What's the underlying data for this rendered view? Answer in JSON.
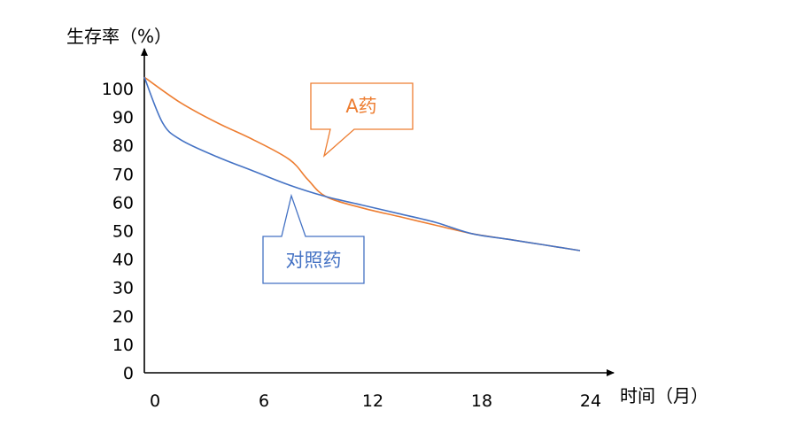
{
  "chart_data": {
    "type": "line",
    "xlabel": "时间（月）",
    "ylabel": "生存率（%）",
    "xlim": [
      0,
      24
    ],
    "ylim": [
      0,
      100
    ],
    "x_ticks": [
      "0",
      "6",
      "12",
      "18",
      "24"
    ],
    "y_ticks": [
      "0",
      "10",
      "20",
      "30",
      "40",
      "50",
      "60",
      "70",
      "80",
      "90",
      "100"
    ],
    "grid": false,
    "legend": "none",
    "series": [
      {
        "name": "A药",
        "color": "#ED7D31",
        "x": [
          0,
          2,
          4,
          6,
          8,
          9,
          10,
          12,
          14,
          16,
          18,
          20,
          22,
          24
        ],
        "y": [
          104,
          95,
          88,
          82,
          75,
          68,
          62,
          58,
          55,
          52,
          49,
          47,
          45,
          43
        ]
      },
      {
        "name": "对照药",
        "color": "#4472C4",
        "x": [
          0,
          1,
          2,
          4,
          6,
          8,
          10,
          12,
          14,
          16,
          18,
          20,
          22,
          24
        ],
        "y": [
          104,
          88,
          82,
          76,
          71,
          66,
          62,
          59,
          56,
          53,
          49,
          47,
          45,
          43
        ]
      }
    ],
    "annotations": [
      {
        "text": "A药",
        "series": "A药",
        "color": "#ED7D31"
      },
      {
        "text": "对照药",
        "series": "对照药",
        "color": "#4472C4"
      }
    ]
  }
}
